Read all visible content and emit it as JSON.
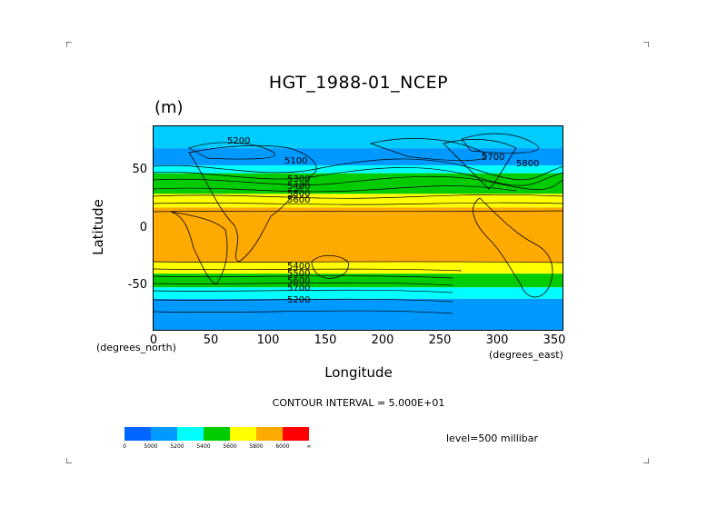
{
  "chart_data": {
    "type": "heatmap",
    "title": "HGT_1988-01_NCEP",
    "units": "(m)",
    "xlabel": "Longitude",
    "ylabel": "Latitude",
    "x_unit": "(degrees_east)",
    "y_unit": "(degrees_north)",
    "xlim": [
      0,
      357.5
    ],
    "ylim": [
      -90,
      90
    ],
    "x_ticks": [
      "0",
      "50",
      "100",
      "150",
      "200",
      "250",
      "300",
      "350"
    ],
    "y_ticks": [
      "50",
      "0",
      "-50"
    ],
    "contour_interval_text": "CONTOUR INTERVAL = 5.000E+01",
    "level_text": "level=500 millibar",
    "contour_labels": [
      "5200",
      "5100",
      "5300",
      "5400",
      "5500",
      "5600",
      "5700",
      "5800",
      "5400",
      "5500",
      "5600",
      "5700",
      "5200"
    ],
    "legend": {
      "ticks": [
        "0",
        "5000",
        "5200",
        "5400",
        "5600",
        "5800",
        "6000",
        "∞"
      ],
      "colors": [
        "#0066ff",
        "#0099ff",
        "#00ffff",
        "#00cc00",
        "#ffff00",
        "#ffaa00",
        "#ff0000"
      ]
    },
    "bands": [
      {
        "lat": [
          70,
          90
        ],
        "color": "#00ccff"
      },
      {
        "lat": [
          55,
          70
        ],
        "color": "#0099ff"
      },
      {
        "lat": [
          48,
          55
        ],
        "color": "#00ffff"
      },
      {
        "lat": [
          30,
          48
        ],
        "color": "#00cc00"
      },
      {
        "lat": [
          18,
          30
        ],
        "color": "#ffff00"
      },
      {
        "lat": [
          -30,
          18
        ],
        "color": "#ffaa00"
      },
      {
        "lat": [
          -40,
          -30
        ],
        "color": "#ffff00"
      },
      {
        "lat": [
          -52,
          -40
        ],
        "color": "#00cc00"
      },
      {
        "lat": [
          -62,
          -52
        ],
        "color": "#00ffff"
      },
      {
        "lat": [
          -90,
          -62
        ],
        "color": "#0099ff"
      }
    ]
  }
}
